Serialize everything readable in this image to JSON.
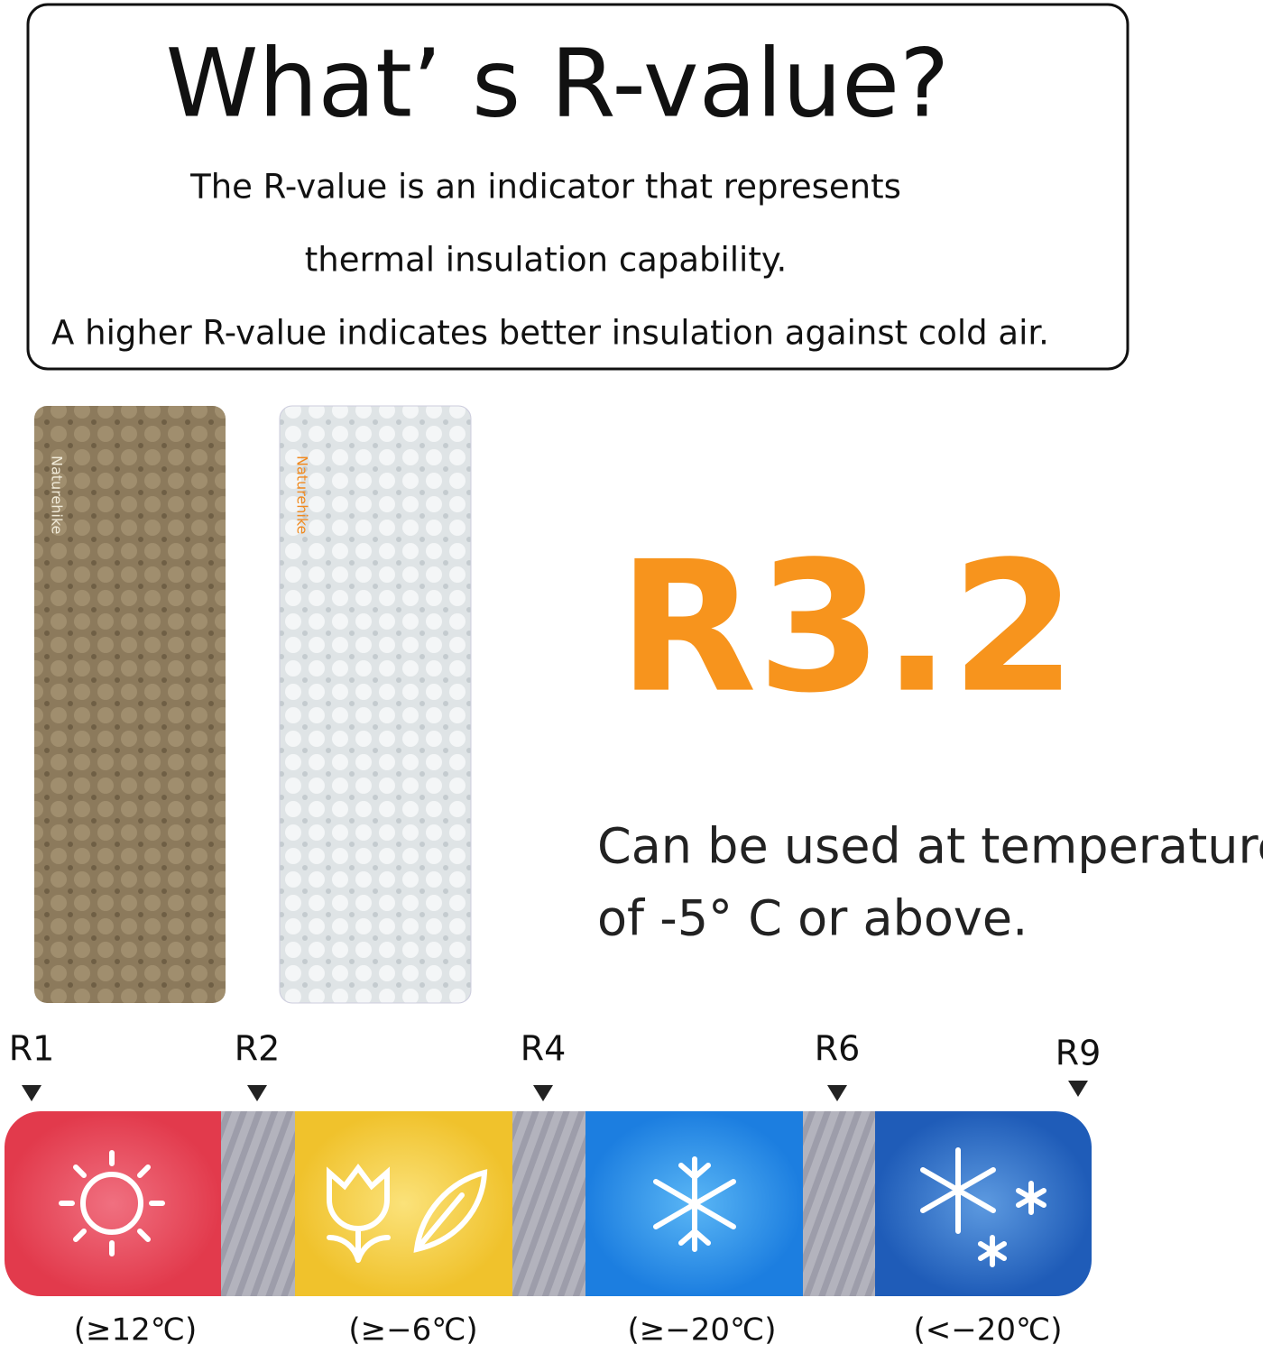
{
  "header": {
    "title": "What’ s R-value?",
    "lines": [
      "The R-value is an indicator that represents",
      "thermal insulation capability.",
      "A higher R-value indicates better insulation against cold air."
    ]
  },
  "mats": [
    {
      "brand": "Naturehike"
    },
    {
      "brand": "Naturehike"
    }
  ],
  "rating": {
    "value": "R3.2",
    "usage": [
      "Can be used at temperatures",
      "of -5° C or above."
    ]
  },
  "scale": {
    "markers": [
      "R1",
      "R2",
      "R4",
      "R6",
      "R9"
    ],
    "ranges": [
      "(≥12℃)",
      "(≥−6℃)",
      "(≥−20℃)",
      "(<−20℃)"
    ]
  }
}
